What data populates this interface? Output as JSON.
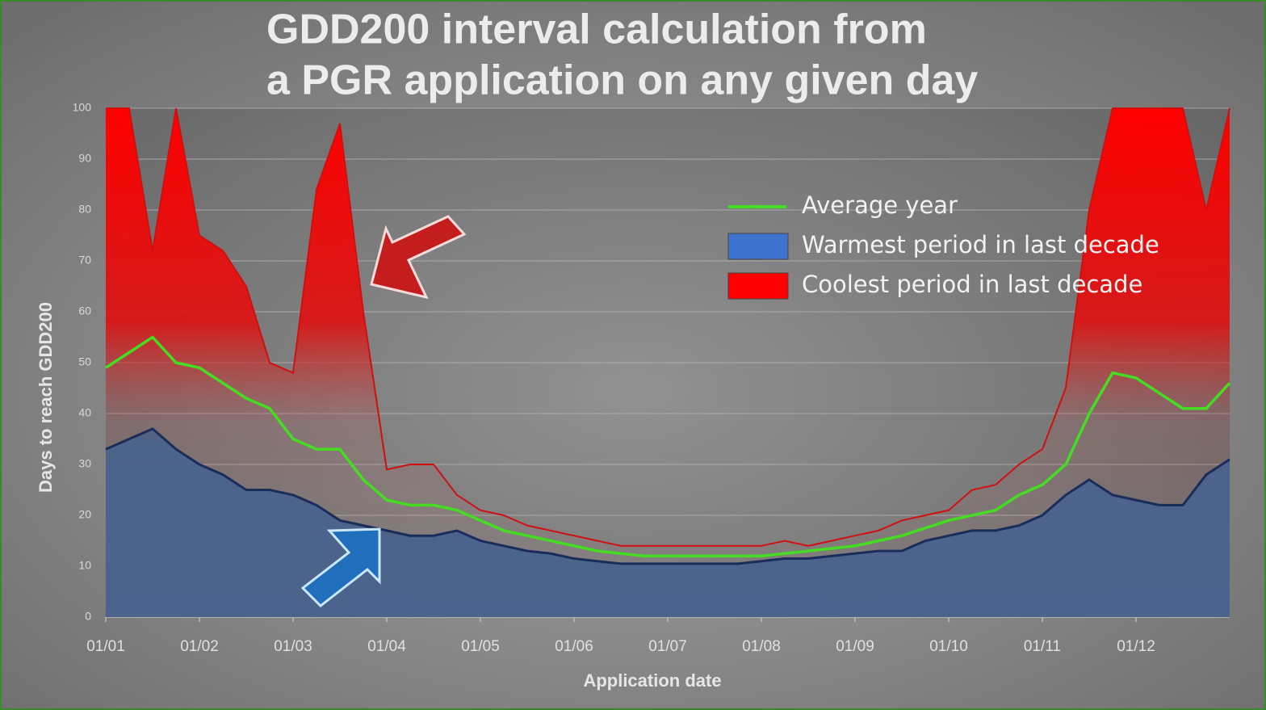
{
  "chart_data": {
    "type": "area",
    "title": [
      "GDD200 interval calculation from",
      "a PGR application on any given day"
    ],
    "x_label": "Application date",
    "y_label": "Days to reach GDD200",
    "categories": [
      "01/01",
      null,
      null,
      null,
      "01/02",
      null,
      null,
      null,
      "01/03",
      null,
      null,
      null,
      "01/04",
      null,
      null,
      null,
      "01/05",
      null,
      null,
      null,
      "01/06",
      null,
      null,
      null,
      "01/07",
      null,
      null,
      null,
      "01/08",
      null,
      null,
      null,
      "01/09",
      null,
      null,
      null,
      "01/10",
      null,
      null,
      null,
      "01/11",
      null,
      null,
      null,
      "01/12",
      null,
      null,
      null,
      null
    ],
    "series": [
      {
        "name": "Average year",
        "color": "#44dd22",
        "kind": "line",
        "values": [
          49,
          52,
          55,
          50,
          49,
          46,
          43,
          41,
          35,
          33,
          33,
          27,
          23,
          22,
          22,
          21,
          19,
          17,
          16,
          15,
          14,
          13,
          12.5,
          12,
          12,
          12,
          12,
          12,
          12,
          12.5,
          13,
          13.5,
          14,
          15,
          16,
          17.5,
          19,
          20,
          21,
          24,
          26,
          30,
          40,
          48,
          47,
          44,
          41,
          41,
          46
        ]
      },
      {
        "name": "Warmest period in last decade",
        "color": "#3f73d0",
        "kind": "area",
        "values": [
          33,
          35,
          37,
          33,
          30,
          28,
          25,
          25,
          24,
          22,
          19,
          18,
          17,
          16,
          16,
          17,
          15,
          14,
          13,
          12.5,
          11.5,
          11,
          10.5,
          10.5,
          10.5,
          10.5,
          10.5,
          10.5,
          11,
          11.5,
          11.5,
          12,
          12.5,
          13,
          13,
          15,
          16,
          17,
          17,
          18,
          20,
          24,
          27,
          24,
          23,
          22,
          22,
          28,
          31
        ]
      },
      {
        "name": "Coolest period in last decade",
        "color": "#ff0000",
        "kind": "area",
        "values": [
          100,
          100,
          72,
          100,
          75,
          72,
          65,
          50,
          48,
          84,
          97,
          60,
          29,
          30,
          30,
          24,
          21,
          20,
          18,
          17,
          16,
          15,
          14,
          14,
          14,
          14,
          14,
          14,
          14,
          15,
          14,
          15,
          16,
          17,
          19,
          20,
          21,
          25,
          26,
          30,
          33,
          45,
          80,
          100,
          100,
          100,
          100,
          80,
          100
        ]
      }
    ],
    "ylim": [
      0,
      100
    ],
    "yticks": [
      0,
      10,
      20,
      30,
      40,
      50,
      60,
      70,
      80,
      90,
      100
    ],
    "grid": true
  }
}
